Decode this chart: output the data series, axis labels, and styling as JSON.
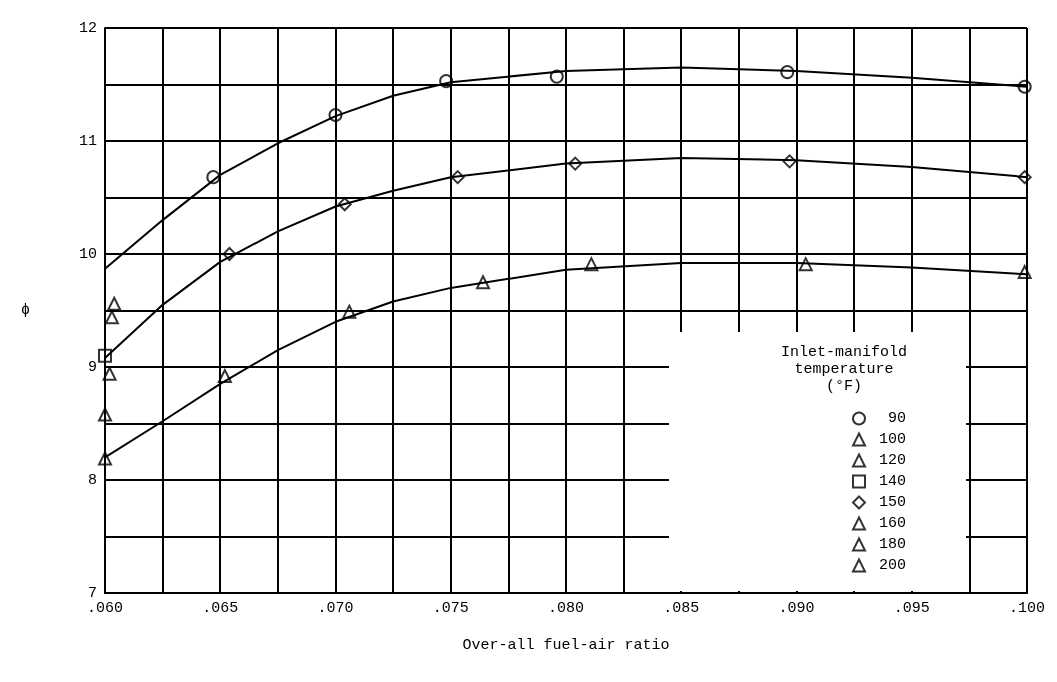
{
  "chart_data": {
    "type": "scatter",
    "xlabel": "Over-all fuel-air ratio",
    "ylabel": "ϕ",
    "legend_title": "Inlet-manifold\ntemperature\n(°F)",
    "legend": "bottom right",
    "grid": true,
    "xlim": [
      0.06,
      0.1
    ],
    "ylim": [
      7,
      12
    ],
    "xticks": [
      {
        "value": 0.06,
        "label": ".060"
      },
      {
        "value": 0.0625,
        "label": null
      },
      {
        "value": 0.065,
        "label": ".065"
      },
      {
        "value": 0.0675,
        "label": null
      },
      {
        "value": 0.07,
        "label": ".070"
      },
      {
        "value": 0.0725,
        "label": null
      },
      {
        "value": 0.075,
        "label": ".075"
      },
      {
        "value": 0.0775,
        "label": null
      },
      {
        "value": 0.08,
        "label": ".080"
      },
      {
        "value": 0.0825,
        "label": null
      },
      {
        "value": 0.085,
        "label": ".085"
      },
      {
        "value": 0.0875,
        "label": null
      },
      {
        "value": 0.09,
        "label": ".090"
      },
      {
        "value": 0.0925,
        "label": null
      },
      {
        "value": 0.095,
        "label": ".095"
      },
      {
        "value": 0.0975,
        "label": null
      },
      {
        "value": 0.1,
        "label": ".100"
      }
    ],
    "yticks": [
      7,
      {
        "value": 7.5,
        "label": null
      },
      8,
      {
        "value": 8.5,
        "label": null
      },
      9,
      {
        "value": 9.5,
        "label": null
      },
      10,
      {
        "value": 10.5,
        "label": null
      },
      11,
      {
        "value": 11.5,
        "label": null
      },
      12
    ],
    "series": [
      {
        "name": "90",
        "color": "#000000",
        "marker": "circle",
        "x": [
          0.0647,
          0.07,
          0.0748,
          0.0796,
          0.0896,
          0.0999
        ],
        "values": [
          10.68,
          11.23,
          11.53,
          11.57,
          11.61,
          11.48
        ]
      },
      {
        "name": "100",
        "color": "#000000",
        "marker": "triangle",
        "x": [
          0.0604
        ],
        "values": [
          9.56
        ]
      },
      {
        "name": "120",
        "color": "#000000",
        "marker": "triangle",
        "x": [
          0.0603
        ],
        "values": [
          9.44
        ]
      },
      {
        "name": "140",
        "color": "#000000",
        "marker": "square",
        "x": [
          0.06
        ],
        "values": [
          9.1
        ]
      },
      {
        "name": "150",
        "color": "#000000",
        "marker": "diamond",
        "x": [
          0.0654,
          0.0704,
          0.0753,
          0.0804,
          0.0897,
          0.0999
        ],
        "values": [
          10.0,
          10.44,
          10.68,
          10.8,
          10.82,
          10.68
        ]
      },
      {
        "name": "160",
        "color": "#000000",
        "marker": "triangle",
        "x": [
          0.0602
        ],
        "values": [
          8.94
        ]
      },
      {
        "name": "180",
        "color": "#000000",
        "marker": "triangle",
        "x": [
          0.06
        ],
        "values": [
          8.58
        ]
      },
      {
        "name": "200",
        "color": "#000000",
        "marker": "triangle",
        "x": [
          0.06,
          0.0652,
          0.0706,
          0.0764,
          0.0811,
          0.0904,
          0.0999
        ],
        "values": [
          8.19,
          8.92,
          9.49,
          9.75,
          9.91,
          9.91,
          9.84
        ]
      },
      {
        "type": "line",
        "color": "#000000",
        "marker": "none",
        "line_style": "solid",
        "x": [
          0.06,
          0.0625,
          0.065,
          0.0675,
          0.07,
          0.0725,
          0.075,
          0.08,
          0.085,
          0.09,
          0.095,
          0.1
        ],
        "values": [
          9.87,
          10.3,
          10.7,
          10.98,
          11.22,
          11.4,
          11.52,
          11.62,
          11.65,
          11.62,
          11.56,
          11.48
        ]
      },
      {
        "type": "line",
        "color": "#000000",
        "marker": "none",
        "line_style": "solid",
        "x": [
          0.06,
          0.0625,
          0.065,
          0.0675,
          0.07,
          0.0725,
          0.075,
          0.08,
          0.085,
          0.09,
          0.095,
          0.1
        ],
        "values": [
          9.08,
          9.55,
          9.93,
          10.2,
          10.42,
          10.56,
          10.68,
          10.8,
          10.85,
          10.83,
          10.77,
          10.68
        ]
      },
      {
        "type": "line",
        "color": "#000000",
        "marker": "none",
        "line_style": "solid",
        "x": [
          0.06,
          0.0625,
          0.065,
          0.0675,
          0.07,
          0.0725,
          0.075,
          0.08,
          0.085,
          0.09,
          0.095,
          0.1
        ],
        "values": [
          8.2,
          8.52,
          8.85,
          9.15,
          9.4,
          9.58,
          9.7,
          9.86,
          9.92,
          9.92,
          9.88,
          9.82
        ]
      }
    ]
  }
}
